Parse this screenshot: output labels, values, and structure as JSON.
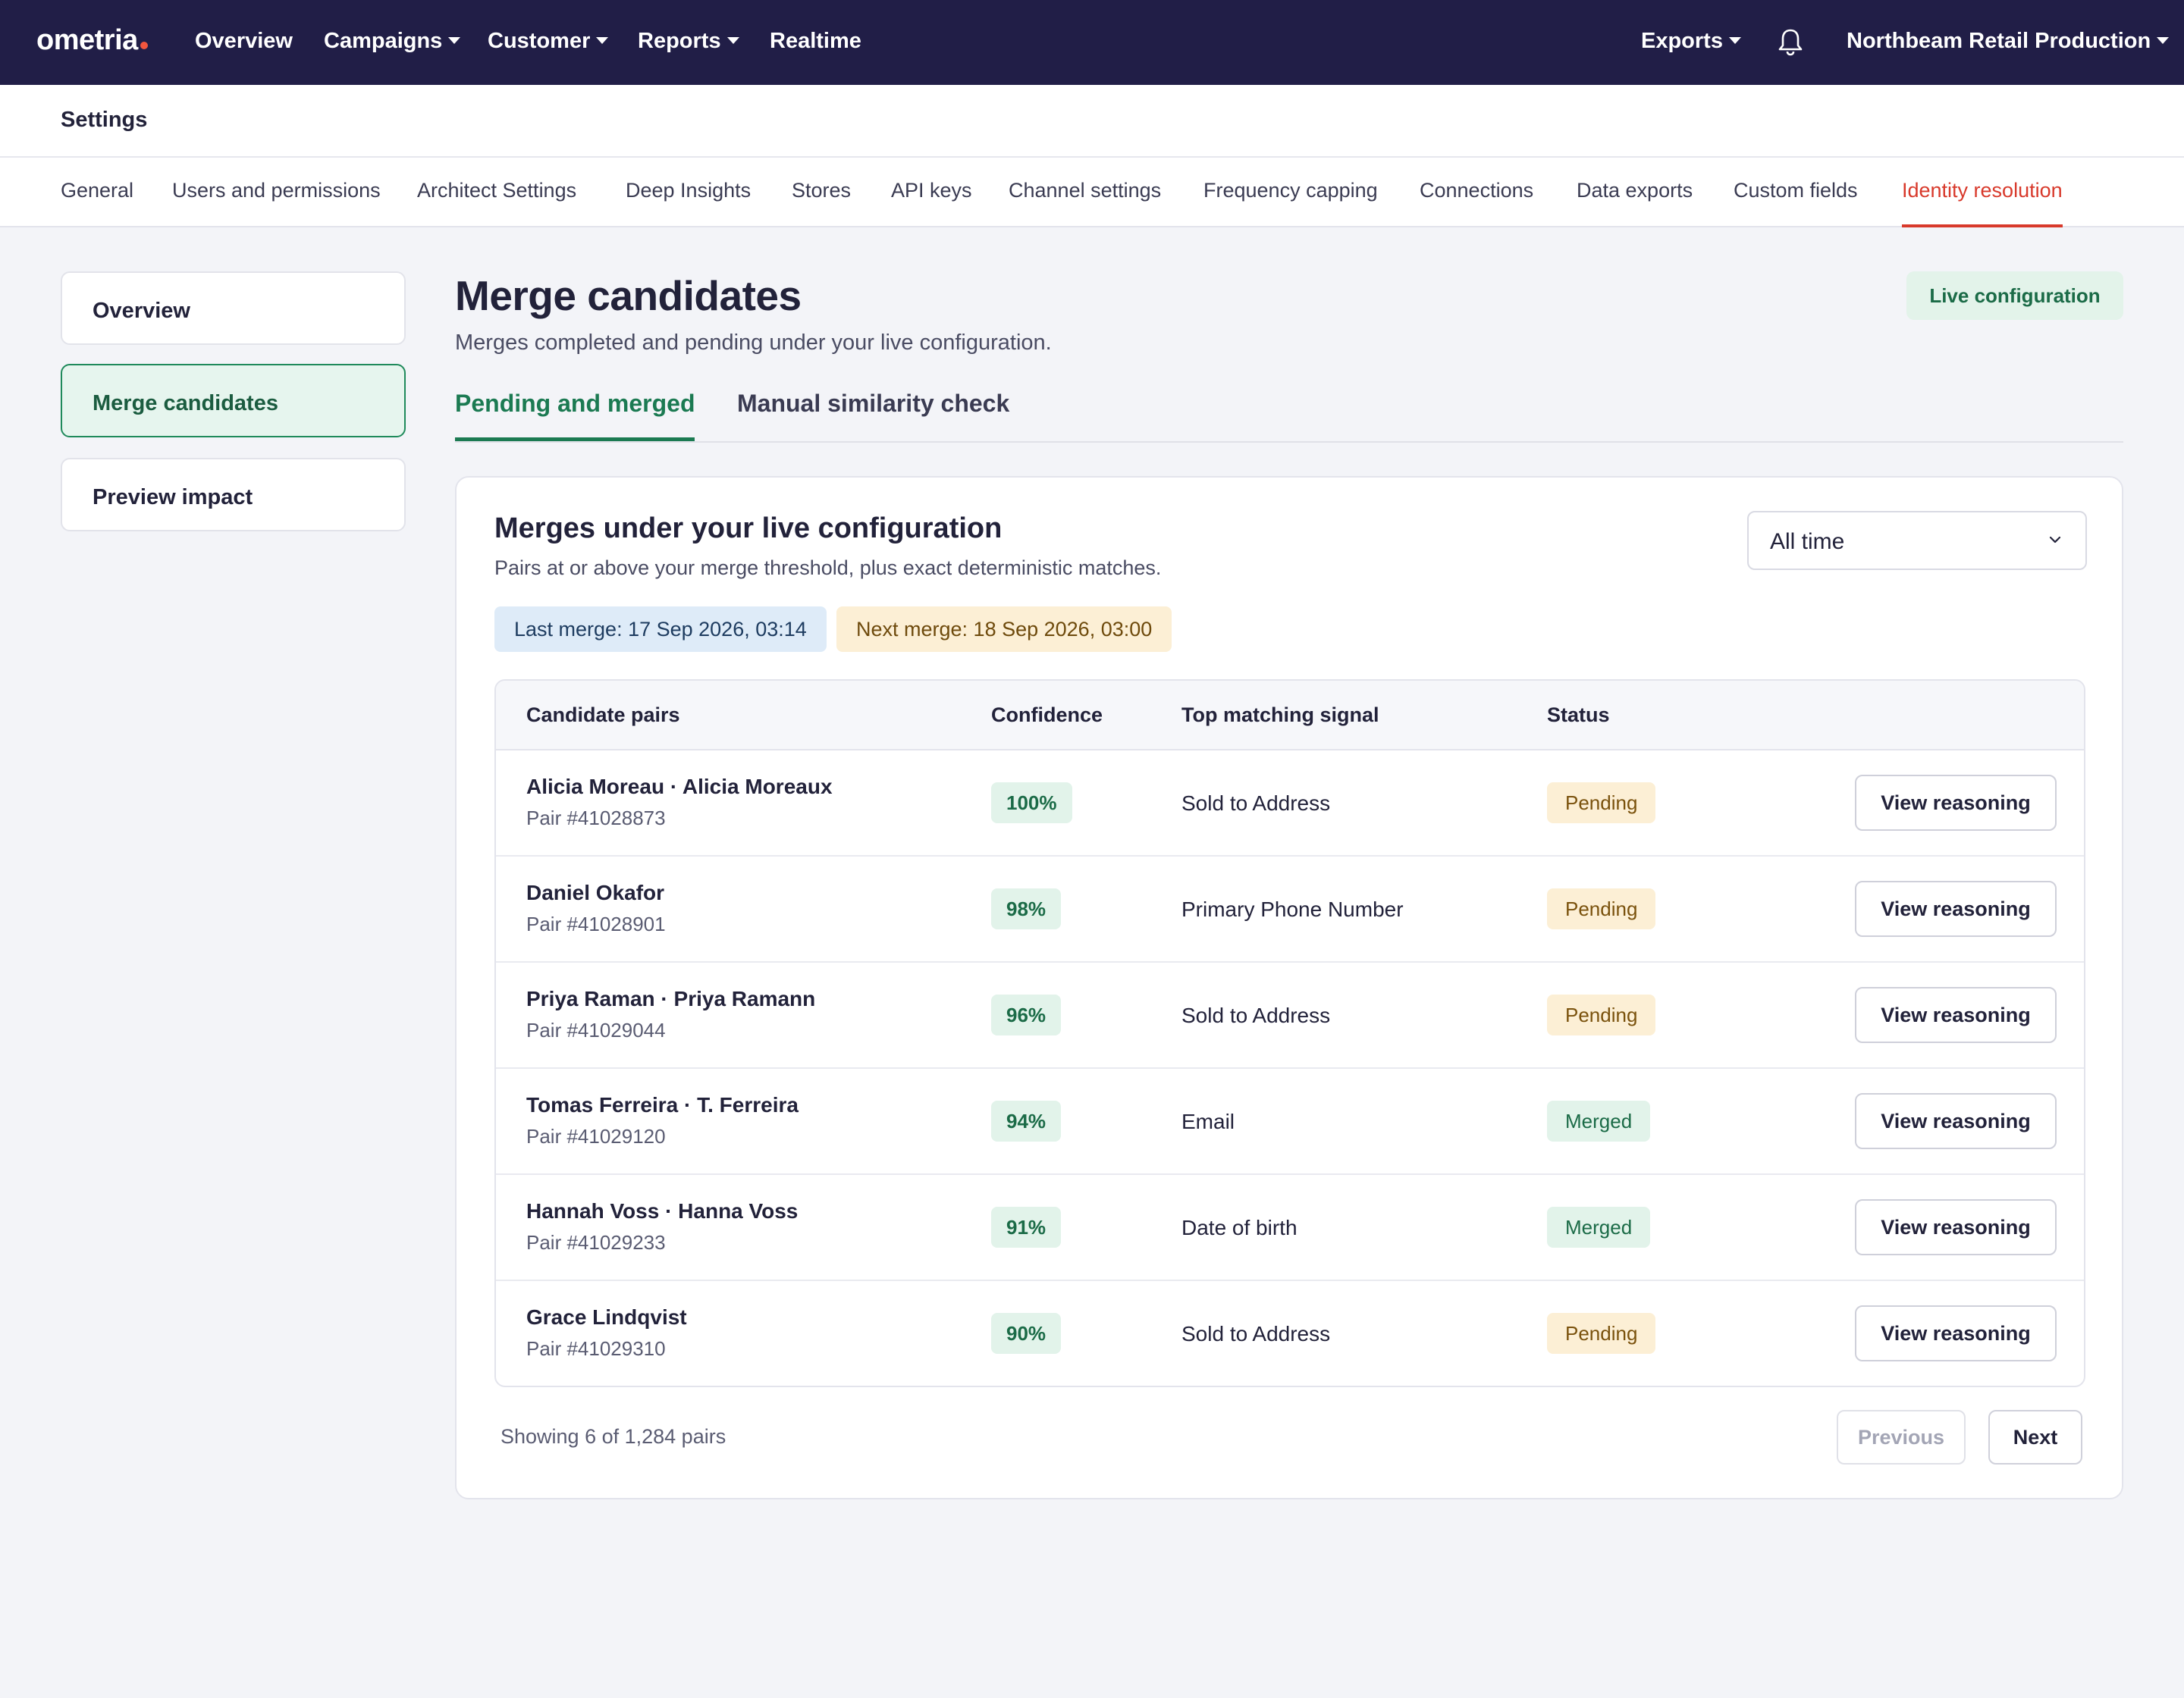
{
  "topbar": {
    "logo": "ometria",
    "nav": [
      {
        "label": "Overview",
        "dropdown": false
      },
      {
        "label": "Campaigns",
        "dropdown": true
      },
      {
        "label": "Customer",
        "dropdown": true
      },
      {
        "label": "Reports",
        "dropdown": true
      },
      {
        "label": "Realtime",
        "dropdown": false
      }
    ],
    "exports_label": "Exports",
    "account_label": "Northbeam Retail Production",
    "bell_icon": "bell-icon"
  },
  "settings": {
    "title": "Settings",
    "tabs": [
      "General",
      "Users and permissions",
      "Architect Settings",
      "Deep Insights",
      "Stores",
      "API keys",
      "Channel settings",
      "Frequency capping",
      "Connections",
      "Data exports",
      "Custom fields",
      "Identity resolution"
    ],
    "active_tab": "Identity resolution"
  },
  "sidebar": {
    "items": [
      "Overview",
      "Merge candidates",
      "Preview impact"
    ],
    "active": "Merge candidates"
  },
  "page": {
    "title": "Merge candidates",
    "subtitle": "Merges completed and pending under your live configuration.",
    "badge": "Live configuration",
    "tabs": [
      "Pending and merged",
      "Manual similarity check"
    ],
    "active_tab": "Pending and merged"
  },
  "card": {
    "title": "Merges under your live configuration",
    "subtitle": "Pairs at or above your merge threshold, plus exact deterministic matches.",
    "last_merge": "Last merge: 17 Sep 2026, 03:14",
    "next_merge": "Next merge: 18 Sep 2026, 03:00",
    "range_select": "All time",
    "columns": [
      "Candidate pairs",
      "Confidence",
      "Top matching signal",
      "Status"
    ],
    "rows": [
      {
        "name": "Alicia Moreau · Alicia Moreaux",
        "pair": "Pair #41028873",
        "confidence": "100%",
        "signal": "Sold to Address",
        "status": "Pending",
        "action": "View reasoning"
      },
      {
        "name": "Daniel Okafor",
        "pair": "Pair #41028901",
        "confidence": "98%",
        "signal": "Primary Phone Number",
        "status": "Pending",
        "action": "View reasoning"
      },
      {
        "name": "Priya Raman · Priya Ramann",
        "pair": "Pair #41029044",
        "confidence": "96%",
        "signal": "Sold to Address",
        "status": "Pending",
        "action": "View reasoning"
      },
      {
        "name": "Tomas Ferreira · T. Ferreira",
        "pair": "Pair #41029120",
        "confidence": "94%",
        "signal": "Email",
        "status": "Merged",
        "action": "View reasoning"
      },
      {
        "name": "Hannah Voss · Hanna Voss",
        "pair": "Pair #41029233",
        "confidence": "91%",
        "signal": "Date of birth",
        "status": "Merged",
        "action": "View reasoning"
      },
      {
        "name": "Grace Lindqvist",
        "pair": "Pair #41029310",
        "confidence": "90%",
        "signal": "Sold to Address",
        "status": "Pending",
        "action": "View reasoning"
      }
    ],
    "footer": "Showing 6 of 1,284 pairs",
    "prev_label": "Previous",
    "next_label": "Next"
  },
  "colors": {
    "topbar": "#211e47",
    "accent_red": "#d8392b",
    "accent_green": "#1b7a52"
  }
}
